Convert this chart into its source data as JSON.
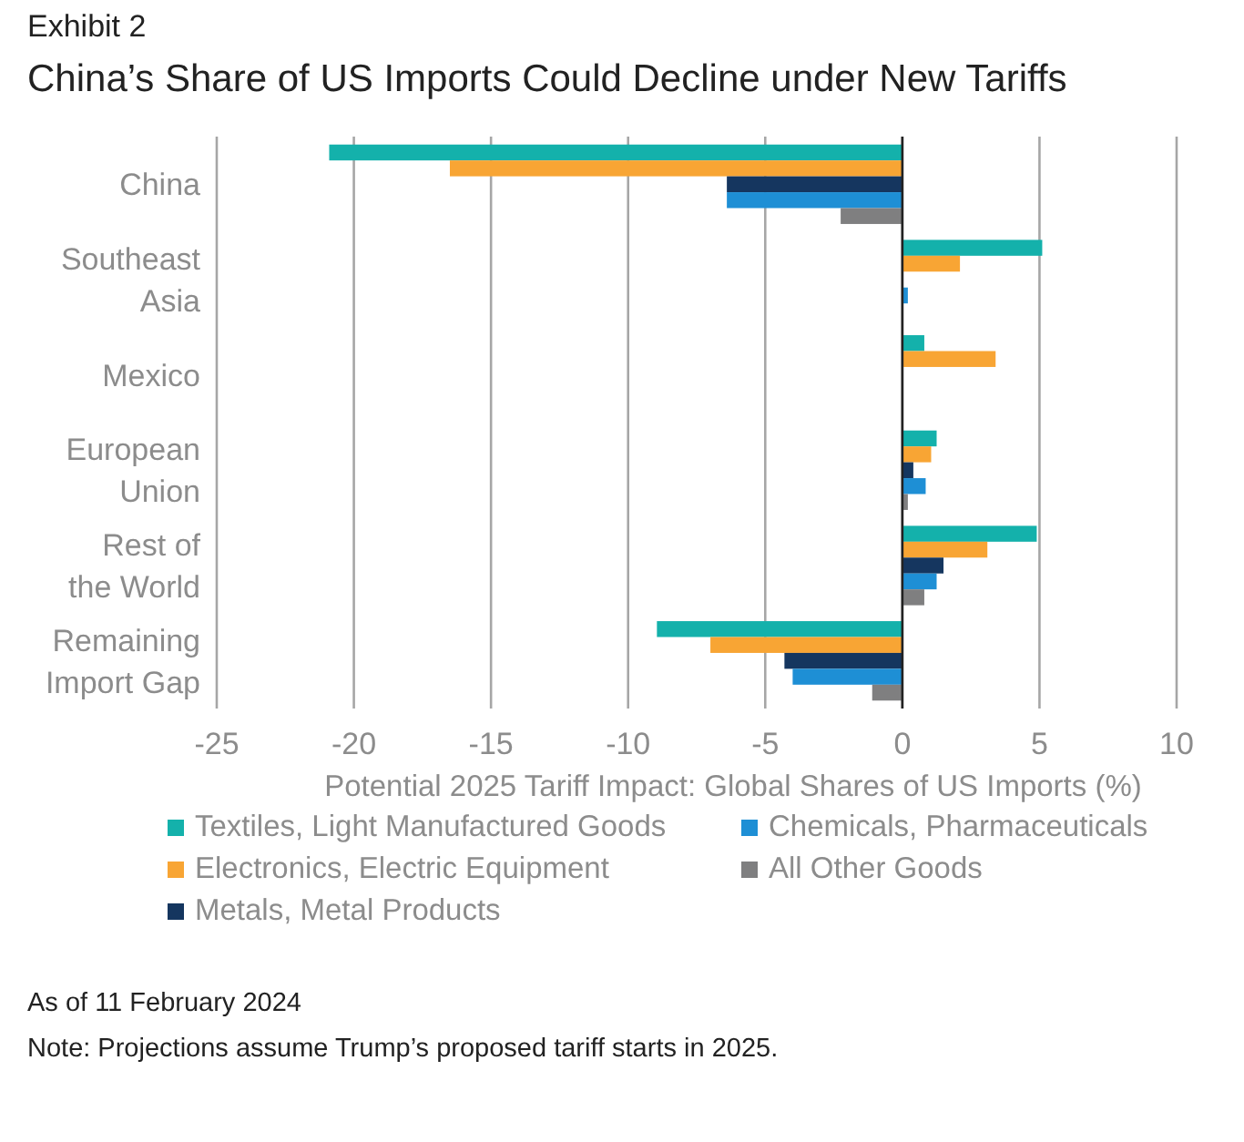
{
  "chart_data": {
    "type": "bar",
    "orientation": "horizontal",
    "subtitle": "Exhibit 2",
    "title": "China’s Share of US Imports Could Decline under New Tariffs",
    "xlabel": "Potential 2025 Tariff Impact: Global Shares of US Imports (%)",
    "categories": [
      "China",
      "Southeast Asia",
      "Mexico",
      "European Union",
      "Rest of the World",
      "Remaining Import Gap"
    ],
    "series": [
      {
        "name": "Textiles, Light Manufactured Goods",
        "color": "#14b1ab",
        "values": [
          -20.9,
          5.1,
          0.8,
          1.25,
          4.9,
          -8.95
        ]
      },
      {
        "name": "Electronics, Electric Equipment",
        "color": "#f8a534",
        "values": [
          -16.5,
          2.1,
          3.4,
          1.05,
          3.1,
          -7.0
        ]
      },
      {
        "name": "Metals, Metal Products",
        "color": "#15365f",
        "values": [
          -6.4,
          null,
          0,
          0.4,
          1.5,
          -4.3
        ]
      },
      {
        "name": "Chemicals, Pharmaceuticals",
        "color": "#1e8fd5",
        "values": [
          -6.4,
          0.2,
          0,
          0.85,
          1.25,
          -4.0
        ]
      },
      {
        "name": "All Other Goods",
        "color": "#7f7f80",
        "values": [
          -2.25,
          0,
          0,
          0.2,
          0.8,
          -1.1
        ]
      }
    ],
    "xlim": [
      -25,
      10
    ],
    "xticks": [
      -25,
      -20,
      -15,
      -10,
      -5,
      0,
      5,
      10
    ],
    "grid": "x",
    "legend": "bottom",
    "annotations": [
      "As of 11 February 2024",
      "Note: Projections assume Trump’s proposed tariff starts in 2025."
    ]
  }
}
